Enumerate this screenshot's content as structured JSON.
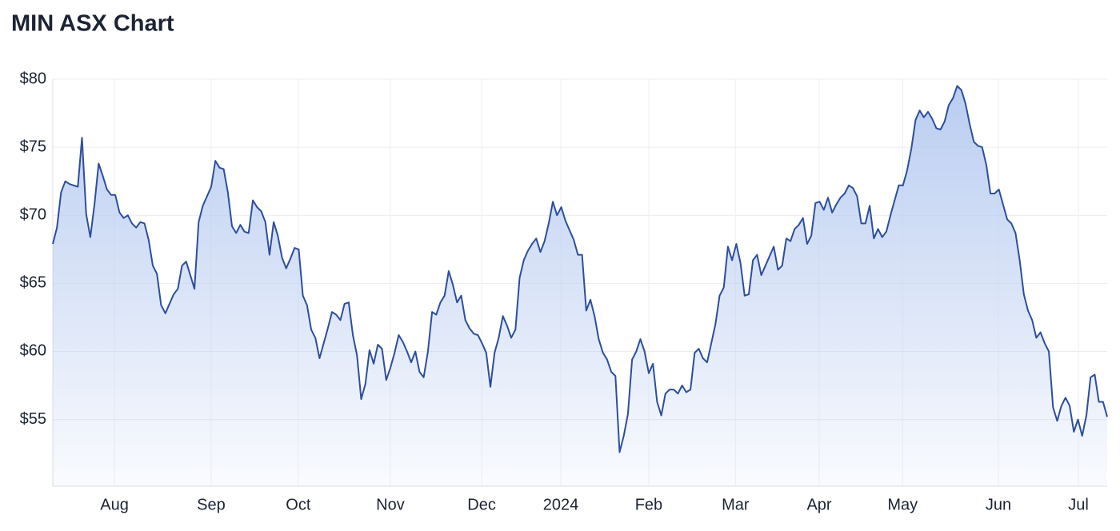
{
  "chart_data": {
    "type": "area",
    "title": "MIN ASX Chart",
    "values": [
      67.9,
      69.1,
      71.7,
      72.5,
      72.3,
      72.2,
      72.1,
      75.7,
      70.1,
      68.4,
      70.8,
      73.8,
      72.9,
      71.9,
      71.5,
      71.5,
      70.2,
      69.8,
      70.0,
      69.4,
      69.1,
      69.5,
      69.4,
      68.2,
      66.3,
      65.7,
      63.4,
      62.8,
      63.5,
      64.2,
      64.6,
      66.3,
      66.6,
      65.6,
      64.6,
      69.5,
      70.7,
      71.4,
      72.1,
      74.0,
      73.5,
      73.4,
      71.7,
      69.2,
      68.7,
      69.3,
      68.8,
      68.7,
      71.1,
      70.6,
      70.3,
      69.5,
      67.1,
      69.5,
      68.5,
      66.9,
      66.1,
      66.8,
      67.6,
      67.5,
      64.1,
      63.4,
      61.6,
      61.0,
      59.5,
      60.6,
      61.7,
      62.9,
      62.7,
      62.3,
      63.5,
      63.6,
      61.2,
      59.7,
      56.5,
      57.6,
      60.1,
      59.1,
      60.5,
      60.2,
      57.9,
      58.8,
      59.9,
      61.2,
      60.7,
      60.0,
      59.2,
      60.0,
      58.5,
      58.1,
      60.0,
      62.9,
      62.7,
      63.6,
      64.1,
      65.9,
      64.9,
      63.6,
      64.1,
      62.3,
      61.7,
      61.3,
      61.2,
      60.6,
      59.9,
      57.4,
      59.9,
      61.0,
      62.6,
      61.9,
      61.0,
      61.6,
      65.4,
      66.7,
      67.4,
      67.9,
      68.3,
      67.3,
      68.1,
      69.4,
      71.0,
      70.0,
      70.6,
      69.6,
      68.9,
      68.2,
      67.1,
      67.1,
      63.0,
      63.8,
      62.6,
      60.9,
      59.9,
      59.4,
      58.5,
      58.2,
      52.6,
      53.8,
      55.4,
      59.4,
      60.0,
      60.9,
      60.0,
      58.4,
      59.1,
      56.3,
      55.3,
      56.9,
      57.2,
      57.2,
      56.9,
      57.5,
      57.0,
      57.2,
      59.9,
      60.2,
      59.5,
      59.2,
      60.6,
      62.0,
      64.1,
      64.7,
      67.7,
      66.7,
      67.9,
      66.5,
      64.1,
      64.2,
      66.7,
      67.1,
      65.6,
      66.3,
      67.0,
      67.7,
      66.0,
      66.3,
      68.3,
      68.1,
      69.0,
      69.3,
      69.8,
      67.9,
      68.5,
      70.9,
      71.0,
      70.4,
      71.3,
      70.2,
      70.8,
      71.3,
      71.6,
      72.2,
      72.0,
      71.4,
      69.4,
      69.4,
      70.7,
      68.3,
      69.0,
      68.4,
      68.8,
      70.0,
      71.1,
      72.2,
      72.2,
      73.3,
      74.9,
      77.0,
      77.7,
      77.2,
      77.6,
      77.1,
      76.4,
      76.3,
      76.9,
      78.1,
      78.6,
      79.5,
      79.2,
      78.2,
      76.7,
      75.4,
      75.1,
      75.0,
      73.7,
      71.6,
      71.6,
      71.9,
      70.8,
      69.7,
      69.4,
      68.7,
      66.7,
      64.2,
      63.0,
      62.3,
      61.0,
      61.4,
      60.6,
      60.0,
      55.9,
      54.9,
      56.0,
      56.6,
      56.0,
      54.1,
      55.0,
      53.8,
      55.3,
      58.1,
      58.3,
      56.3,
      56.3,
      55.2
    ],
    "color": "#2d4e9c",
    "xlim": [
      0,
      253
    ],
    "xticks": [
      {
        "value": 14.8,
        "label": "Aug"
      },
      {
        "value": 38.0,
        "label": "Sep"
      },
      {
        "value": 58.9,
        "label": "Oct"
      },
      {
        "value": 81.0,
        "label": "Nov"
      },
      {
        "value": 102.9,
        "label": "Dec"
      },
      {
        "value": 121.9,
        "label": "2024"
      },
      {
        "value": 143.0,
        "label": "Feb"
      },
      {
        "value": 163.8,
        "label": "Mar"
      },
      {
        "value": 183.9,
        "label": "Apr"
      },
      {
        "value": 203.9,
        "label": "May"
      },
      {
        "value": 226.9,
        "label": "Jun"
      },
      {
        "value": 246.1,
        "label": "Jul"
      }
    ],
    "ylim": [
      50.1,
      80
    ],
    "yticks": [
      {
        "value": 55,
        "label": "$55"
      },
      {
        "value": 60,
        "label": "$60"
      },
      {
        "value": 65,
        "label": "$65"
      },
      {
        "value": 70,
        "label": "$70"
      },
      {
        "value": 75,
        "label": "$75"
      },
      {
        "value": 80,
        "label": "$80"
      }
    ],
    "grid": true
  }
}
